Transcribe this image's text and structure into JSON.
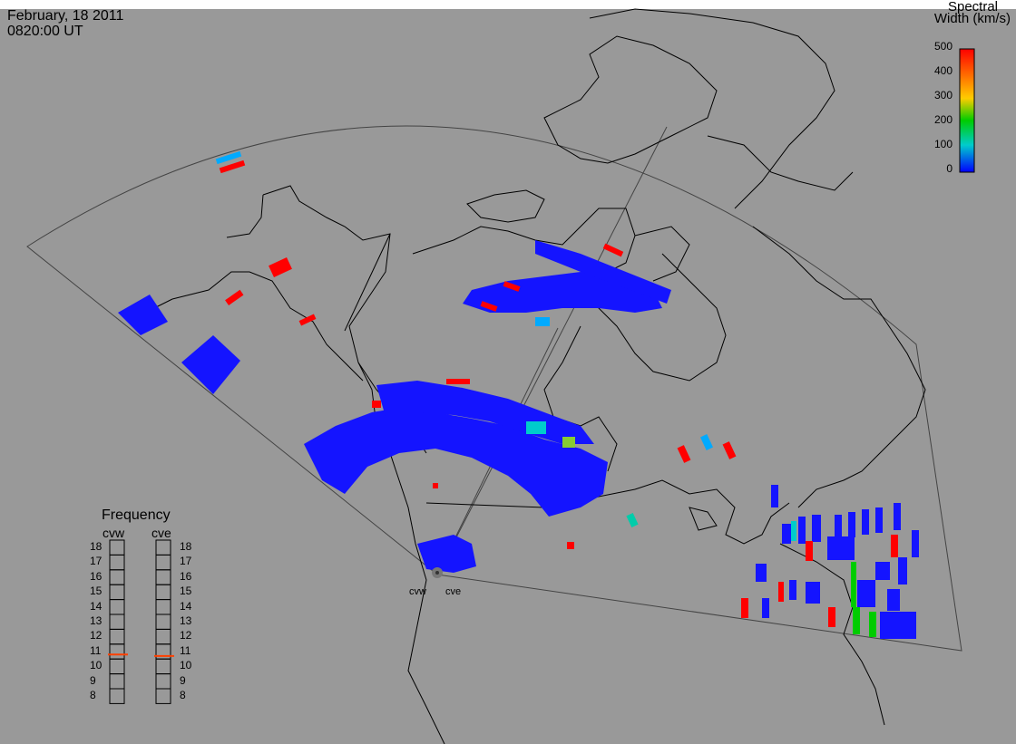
{
  "header": {
    "date": "February, 18 2011",
    "time": "0820:00 UT"
  },
  "colorbar": {
    "title_line1": "Spectral",
    "title_line2": "Width (km/s)",
    "ticks": [
      "500",
      "400",
      "300",
      "200",
      "100",
      "0"
    ],
    "colors": [
      "#ff0000",
      "#ff6600",
      "#ffcc00",
      "#00cc00",
      "#00cccc",
      "#0000ff"
    ]
  },
  "frequency_panel": {
    "title": "Frequency",
    "radars": [
      "cvw",
      "cve"
    ],
    "scale": [
      "18",
      "17",
      "16",
      "15",
      "14",
      "13",
      "12",
      "11",
      "10",
      "9",
      "8"
    ],
    "cvw_value": 10.8,
    "cve_value": 10.7
  },
  "radar_labels": {
    "west": "cvw",
    "east": "cve"
  }
}
